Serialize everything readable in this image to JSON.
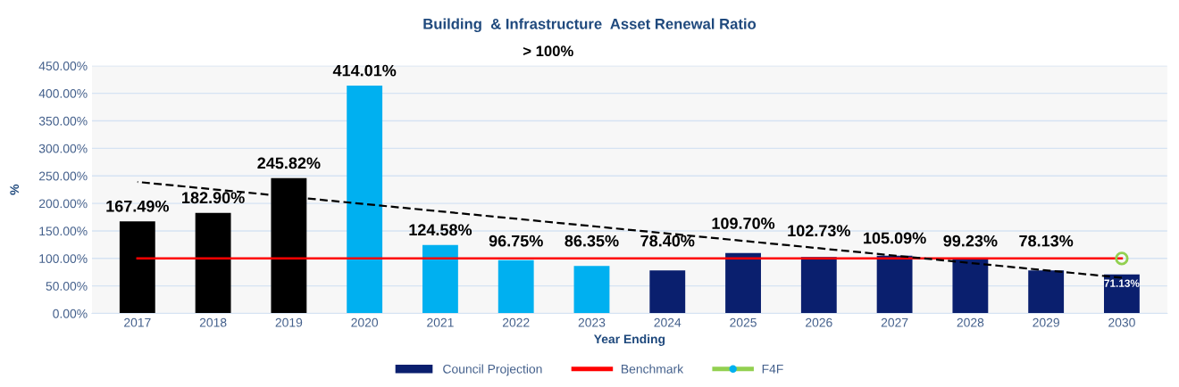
{
  "chart_data": {
    "type": "bar",
    "title": "Building  & Infrastructure  Asset Renewal Ratio",
    "subtitle": "> 100%",
    "xlabel": "Year Ending",
    "ylabel": "%",
    "categories": [
      "2017",
      "2018",
      "2019",
      "2020",
      "2021",
      "2022",
      "2023",
      "2024",
      "2025",
      "2026",
      "2027",
      "2028",
      "2029",
      "2030"
    ],
    "series": [
      {
        "name": "Council Projection",
        "type": "bar",
        "color": "#0a1f6e",
        "colors": [
          "#000000",
          "#000000",
          "#000000",
          "#00b0f0",
          "#00b0f0",
          "#00b0f0",
          "#00b0f0",
          "#0a1f6e",
          "#0a1f6e",
          "#0a1f6e",
          "#0a1f6e",
          "#0a1f6e",
          "#0a1f6e",
          "#0a1f6e"
        ],
        "values": [
          167.49,
          182.9,
          245.82,
          414.01,
          124.58,
          96.75,
          86.35,
          78.4,
          109.7,
          102.73,
          105.09,
          99.23,
          78.13,
          71.13
        ],
        "value_labels": [
          "167.49%",
          "182.90%",
          "245.82%",
          "414.01%",
          "124.58%",
          "96.75%",
          "86.35%",
          "78.40%",
          "109.70%",
          "102.73%",
          "105.09%",
          "99.23%",
          "78.13%",
          "71.13%"
        ]
      },
      {
        "name": "Benchmark",
        "type": "line",
        "color": "#ff0000",
        "values": [
          100,
          100,
          100,
          100,
          100,
          100,
          100,
          100,
          100,
          100,
          100,
          100,
          100,
          100
        ]
      },
      {
        "name": "F4F",
        "type": "line",
        "color": "#92d050",
        "marker": "circle",
        "values": [
          null,
          null,
          null,
          null,
          null,
          null,
          null,
          null,
          null,
          null,
          null,
          null,
          null,
          100
        ]
      },
      {
        "type": "line",
        "color": "#000000",
        "line_style": "dashed",
        "values": [
          239,
          null,
          null,
          null,
          null,
          null,
          null,
          null,
          null,
          null,
          null,
          null,
          null,
          65
        ]
      }
    ],
    "ylim": [
      0,
      450
    ],
    "yticks": [
      {
        "value": 0,
        "label": "0.00%"
      },
      {
        "value": 50,
        "label": "50.00%"
      },
      {
        "value": 100,
        "label": "100.00%"
      },
      {
        "value": 150,
        "label": "150.00%"
      },
      {
        "value": 200,
        "label": "200.00%"
      },
      {
        "value": 250,
        "label": "250.00%"
      },
      {
        "value": 300,
        "label": "300.00%"
      },
      {
        "value": 350,
        "label": "350.00%"
      },
      {
        "value": 400,
        "label": "400.00%"
      },
      {
        "value": 450,
        "label": "450.00%"
      }
    ],
    "grid": "y",
    "legend": "bottom"
  }
}
